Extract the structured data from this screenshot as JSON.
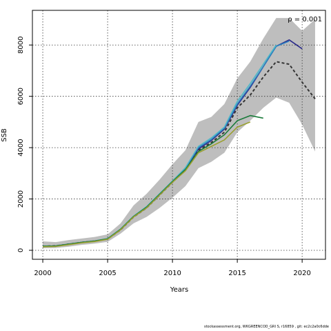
{
  "chart_data": {
    "type": "line",
    "xlabel": "Years",
    "ylabel": "SSB",
    "xlim": [
      1999.2,
      2021.8
    ],
    "ylim": [
      -350,
      9350
    ],
    "x_ticks": [
      2000,
      2005,
      2010,
      2015,
      2020
    ],
    "y_ticks": [
      0,
      2000,
      4000,
      6000,
      8000
    ],
    "grid": true,
    "annotation": "ρ = 0.001",
    "confidence_band": {
      "x": [
        2000,
        2001,
        2002,
        2003,
        2004,
        2005,
        2006,
        2007,
        2008,
        2009,
        2010,
        2011,
        2012,
        2013,
        2014,
        2015,
        2016,
        2017,
        2018,
        2019,
        2020,
        2021
      ],
      "lower": [
        80,
        90,
        140,
        210,
        260,
        330,
        650,
        1050,
        1300,
        1650,
        2050,
        2500,
        3200,
        3450,
        3800,
        4600,
        5050,
        5550,
        5950,
        5750,
        4900,
        3850
      ],
      "upper": [
        350,
        320,
        400,
        460,
        520,
        620,
        1050,
        1750,
        2200,
        2750,
        3350,
        3900,
        5000,
        5200,
        5700,
        6700,
        7350,
        8250,
        9050,
        9050,
        8550,
        9000
      ]
    },
    "series": [
      {
        "color": "#333333",
        "dashed": true,
        "width": 2,
        "x": [
          2000,
          2001,
          2002,
          2003,
          2004,
          2005,
          2006,
          2007,
          2008,
          2009,
          2010,
          2011,
          2012,
          2013,
          2014,
          2015,
          2016,
          2017,
          2018,
          2019,
          2020,
          2021
        ],
        "values": [
          160,
          170,
          240,
          310,
          360,
          440,
          800,
          1300,
          1650,
          2150,
          2650,
          3150,
          3900,
          4200,
          4600,
          5550,
          6050,
          6750,
          7350,
          7250,
          6550,
          5900
        ]
      },
      {
        "color": "#2a2a8a",
        "dashed": false,
        "width": 1.6,
        "x": [
          2000,
          2001,
          2002,
          2003,
          2004,
          2005,
          2006,
          2007,
          2008,
          2009,
          2010,
          2011,
          2012,
          2013,
          2014,
          2015,
          2016,
          2017,
          2018,
          2019,
          2020
        ],
        "values": [
          160,
          170,
          240,
          310,
          360,
          450,
          820,
          1320,
          1680,
          2180,
          2680,
          3180,
          3950,
          4280,
          4720,
          5650,
          6350,
          7150,
          7950,
          8200,
          7850
        ]
      },
      {
        "color": "#2a7fc0",
        "dashed": false,
        "width": 1.6,
        "x": [
          2000,
          2001,
          2002,
          2003,
          2004,
          2005,
          2006,
          2007,
          2008,
          2009,
          2010,
          2011,
          2012,
          2013,
          2014,
          2015,
          2016,
          2017,
          2018,
          2019
        ],
        "values": [
          160,
          170,
          240,
          310,
          360,
          450,
          820,
          1320,
          1680,
          2180,
          2680,
          3200,
          4000,
          4320,
          4760,
          5700,
          6400,
          7150,
          7950,
          8150
        ]
      },
      {
        "color": "#4fb8c8",
        "dashed": false,
        "width": 1.6,
        "x": [
          2000,
          2001,
          2002,
          2003,
          2004,
          2005,
          2006,
          2007,
          2008,
          2009,
          2010,
          2011,
          2012,
          2013,
          2014,
          2015,
          2016,
          2017,
          2018
        ],
        "values": [
          160,
          170,
          240,
          310,
          360,
          460,
          830,
          1330,
          1700,
          2200,
          2700,
          3220,
          4050,
          4380,
          4800,
          5800,
          6500,
          7250,
          8000
        ]
      },
      {
        "color": "#1a7a3a",
        "dashed": false,
        "width": 1.6,
        "x": [
          2000,
          2001,
          2002,
          2003,
          2004,
          2005,
          2006,
          2007,
          2008,
          2009,
          2010,
          2011,
          2012,
          2013,
          2014,
          2015,
          2016,
          2017
        ],
        "values": [
          160,
          170,
          240,
          310,
          360,
          450,
          820,
          1320,
          1680,
          2180,
          2680,
          3150,
          3850,
          4150,
          4500,
          5050,
          5250,
          5150
        ]
      },
      {
        "color": "#9aa030",
        "dashed": false,
        "width": 1.6,
        "x": [
          2000,
          2001,
          2002,
          2003,
          2004,
          2005,
          2006,
          2007,
          2008,
          2009,
          2010,
          2011,
          2012,
          2013,
          2014,
          2015,
          2016
        ],
        "values": [
          140,
          150,
          220,
          290,
          340,
          430,
          800,
          1300,
          1650,
          2150,
          2650,
          3100,
          3800,
          4050,
          4300,
          4800,
          5000
        ]
      }
    ]
  },
  "footer": "stockassessment.org, WKGREENCOD_GRI S, r16859 , git: ec2c2a0c6dde"
}
